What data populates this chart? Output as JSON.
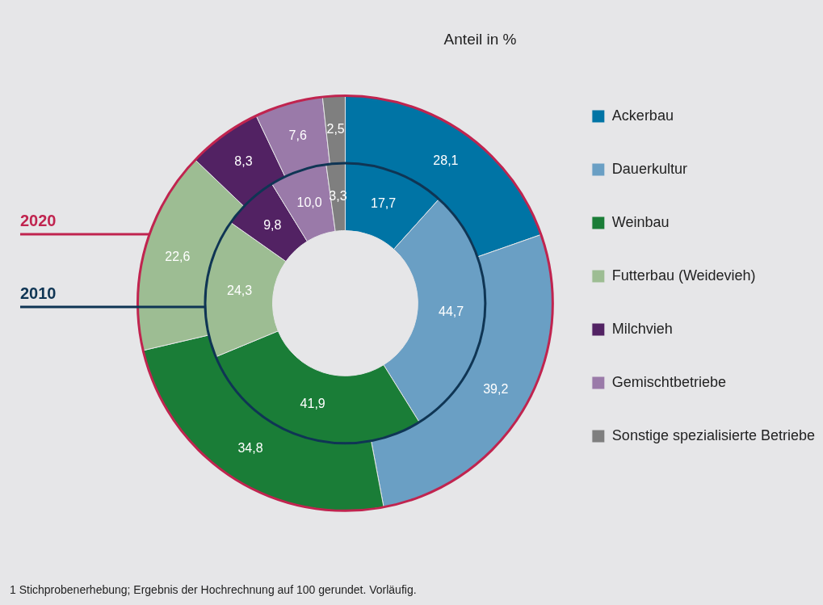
{
  "chart_data": {
    "type": "donut",
    "title": "Anteil in %",
    "categories": [
      "Ackerbau",
      "Dauerkultur",
      "Weinbau",
      "Futterbau (Weidevieh)",
      "Milchvieh",
      "Gemischtbetriebe",
      "Sonstige spezialisierte Betriebe"
    ],
    "colors": [
      "#0074a5",
      "#6a9fc4",
      "#1a7d37",
      "#9dbd93",
      "#522263",
      "#9a7aa9",
      "#7f7f7f"
    ],
    "series": [
      {
        "name": "2020",
        "color": "#c0244f",
        "values": [
          28.1,
          39.2,
          34.8,
          22.6,
          8.3,
          7.6,
          2.5
        ],
        "value_labels": [
          "28,1",
          "39,2",
          "34,8",
          "22,6",
          "8,3",
          "7,6",
          "2,5"
        ]
      },
      {
        "name": "2010",
        "color": "#0f3554",
        "values": [
          17.7,
          44.7,
          41.9,
          24.3,
          9.8,
          10.0,
          3.3
        ],
        "value_labels": [
          "17,7",
          "44,7",
          "41,9",
          "24,3",
          "9,8",
          "10,0",
          "3,3"
        ]
      }
    ],
    "legend": "right",
    "annotations": [
      "1 Stichprobenerhebung; Ergebnis der Hochrechnung auf 100 gerundet. Vorläufig."
    ]
  }
}
